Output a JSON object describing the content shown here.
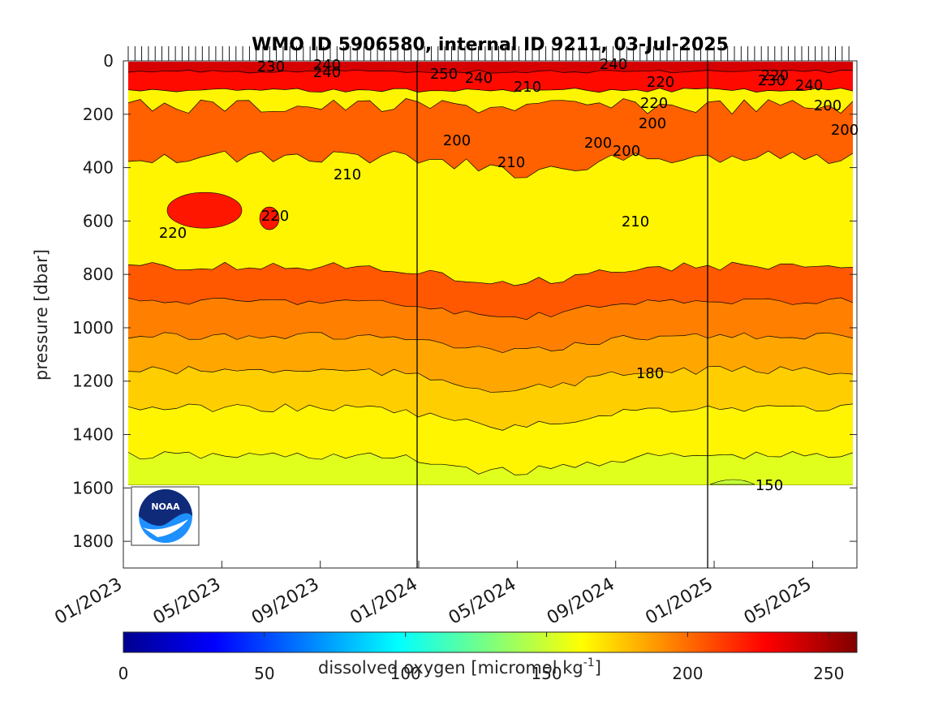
{
  "chart_data": {
    "type": "contour",
    "title": "WMO ID 5906580, internal ID 9211, 03-Jul-2025",
    "ylabel": "pressure [dbar]",
    "ylim": [
      1900,
      0
    ],
    "yticks": [
      0,
      200,
      400,
      600,
      800,
      1000,
      1200,
      1400,
      1600,
      1800
    ],
    "xticks": [
      "01/2023",
      "05/2023",
      "09/2023",
      "01/2024",
      "05/2024",
      "09/2024",
      "01/2025",
      "05/2025"
    ],
    "colorbar": {
      "label": "dissolved oxygen [micromol kg",
      "label_exponent": "-1",
      "label_suffix": "]",
      "range": [
        0,
        260
      ],
      "ticks": [
        0,
        50,
        100,
        150,
        200,
        250
      ],
      "colormap": "jet-like (dark blue to dark red)"
    },
    "contour_levels": [
      150,
      160,
      170,
      180,
      190,
      200,
      210,
      220,
      230,
      240,
      250
    ],
    "contour_labels": [
      "230",
      "240",
      "240",
      "250",
      "240",
      "210",
      "240",
      "220",
      "220",
      "220",
      "230",
      "240",
      "200",
      "200",
      "200",
      "200",
      "200",
      "200",
      "210",
      "210",
      "210",
      "220",
      "220",
      "180",
      "150"
    ],
    "year_boundaries": [
      "01/2024",
      "01/2025"
    ],
    "data_depth_limit_dbar": 1590,
    "logo": "NOAA"
  }
}
